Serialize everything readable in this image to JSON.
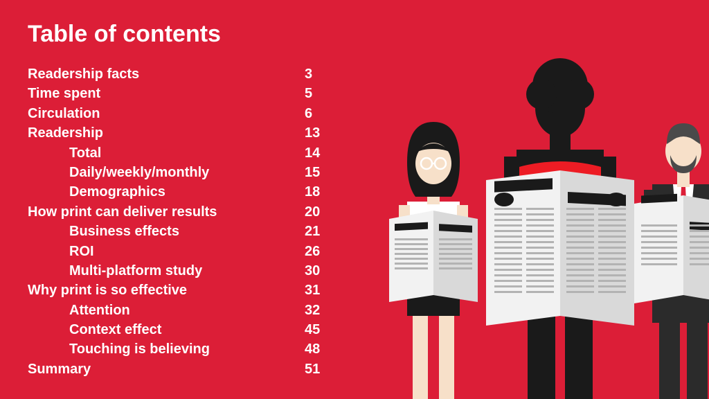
{
  "title": "Table of contents",
  "background_color": "#dc1e37",
  "text_color": "#ffffff",
  "title_fontsize": 34,
  "row_fontsize": 20,
  "rows": [
    {
      "label": "Readership facts",
      "page": "3",
      "indent": false
    },
    {
      "label": "Time spent",
      "page": "5",
      "indent": false
    },
    {
      "label": "Circulation",
      "page": "6",
      "indent": false
    },
    {
      "label": "Readership",
      "page": "13",
      "indent": false
    },
    {
      "label": "Total",
      "page": "14",
      "indent": true
    },
    {
      "label": "Daily/weekly/monthly",
      "page": "15",
      "indent": true
    },
    {
      "label": "Demographics",
      "page": "18",
      "indent": true
    },
    {
      "label": "How print can deliver results",
      "page": "20",
      "indent": false
    },
    {
      "label": "Business effects",
      "page": "21",
      "indent": true
    },
    {
      "label": "ROI",
      "page": "26",
      "indent": true
    },
    {
      "label": "Multi-platform study",
      "page": "30",
      "indent": true
    },
    {
      "label": "Why print is so effective",
      "page": "31",
      "indent": false
    },
    {
      "label": "Attention",
      "page": "32",
      "indent": true
    },
    {
      "label": "Context effect",
      "page": "45",
      "indent": true
    },
    {
      "label": "Touching is believing",
      "page": "48",
      "indent": true
    },
    {
      "label": "Summary",
      "page": "51",
      "indent": false
    }
  ],
  "illustration": {
    "colors": {
      "skin_light": "#f7e0c9",
      "skin_dark": "#1a1a1a",
      "hair_black": "#1a1a1a",
      "hair_grey": "#4a4a4a",
      "shirt_red": "#ed1c24",
      "shirt_white": "#ffffff",
      "suit_dark": "#2b2b2b",
      "tie_red": "#dc1e37",
      "pants_black": "#1a1a1a",
      "shorts_black": "#1a1a1a",
      "paper_light": "#f2f2f2",
      "paper_mid": "#d9d9d9",
      "paper_dark": "#b3b3b3",
      "headline_bar": "#1a1a1a",
      "glasses": "#ffffff"
    }
  }
}
